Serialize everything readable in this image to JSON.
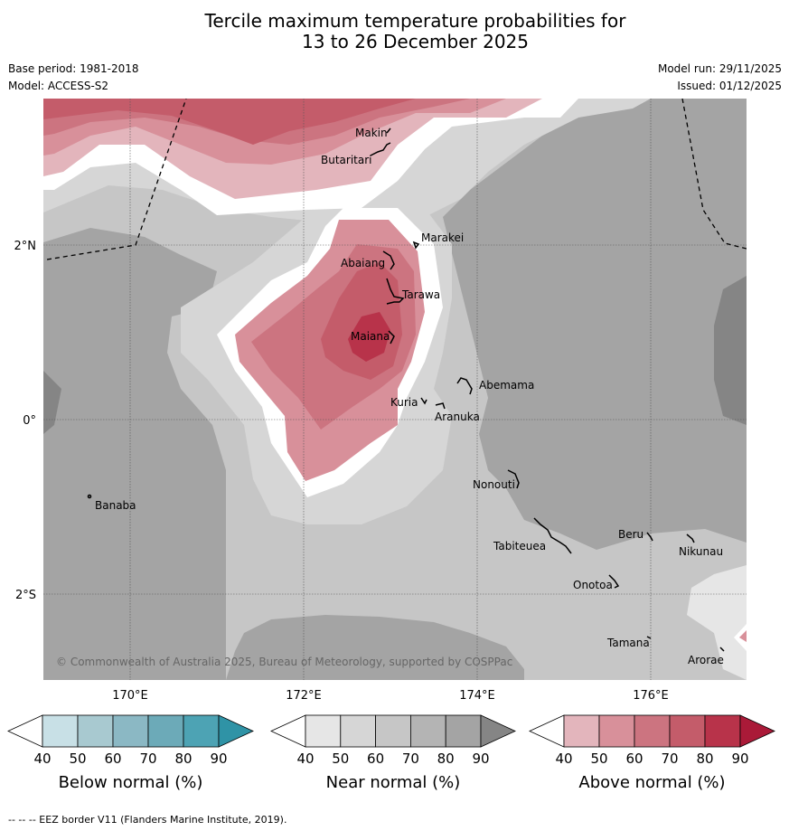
{
  "title_line1": "Tercile maximum temperature probabilities for",
  "title_line2": "13 to 26 December 2025",
  "base_period": "Base period: 1981-2018",
  "model": "Model: ACCESS-S2",
  "model_run": "Model run: 29/11/2025",
  "issued": "Issued: 01/12/2025",
  "copyright": "© Commonwealth of Australia 2025, Bureau of Meteorology, supported by COSPPac",
  "footnote": "-- -- -- EEZ border V11 (Flanders Marine Institute, 2019).",
  "axes": {
    "lon_ticks": [
      "170°E",
      "172°E",
      "174°E",
      "176°E"
    ],
    "lat_ticks": [
      "2°N",
      "0°",
      "2°S"
    ]
  },
  "places": [
    {
      "name": "Makin"
    },
    {
      "name": "Butaritari"
    },
    {
      "name": "Marakei"
    },
    {
      "name": "Abaiang"
    },
    {
      "name": "Tarawa"
    },
    {
      "name": "Maiana"
    },
    {
      "name": "Abemama"
    },
    {
      "name": "Kuria"
    },
    {
      "name": "Aranuka"
    },
    {
      "name": "Nonouti"
    },
    {
      "name": "Banaba"
    },
    {
      "name": "Beru"
    },
    {
      "name": "Tabiteuea"
    },
    {
      "name": "Nikunau"
    },
    {
      "name": "Onotoa"
    },
    {
      "name": "Tamana"
    },
    {
      "name": "Arorae"
    }
  ],
  "colorbars": [
    {
      "title": "Below normal (%)",
      "ticks": [
        "40",
        "50",
        "60",
        "70",
        "80",
        "90"
      ],
      "colors": [
        "#ffffff",
        "#c8e0e6",
        "#a8c9d0",
        "#8bb8c4",
        "#6caab8",
        "#4da3b4",
        "#2f93a6"
      ]
    },
    {
      "title": "Near normal (%)",
      "ticks": [
        "40",
        "50",
        "60",
        "70",
        "80",
        "90"
      ],
      "colors": [
        "#ffffff",
        "#e6e6e6",
        "#d6d6d6",
        "#c6c6c6",
        "#b4b4b4",
        "#a4a4a4",
        "#858585"
      ]
    },
    {
      "title": "Above normal (%)",
      "ticks": [
        "40",
        "50",
        "60",
        "70",
        "80",
        "90"
      ],
      "colors": [
        "#ffffff",
        "#e3b5bc",
        "#d8909a",
        "#cc7480",
        "#c45c6a",
        "#b8334a",
        "#aa1a38"
      ]
    }
  ]
}
